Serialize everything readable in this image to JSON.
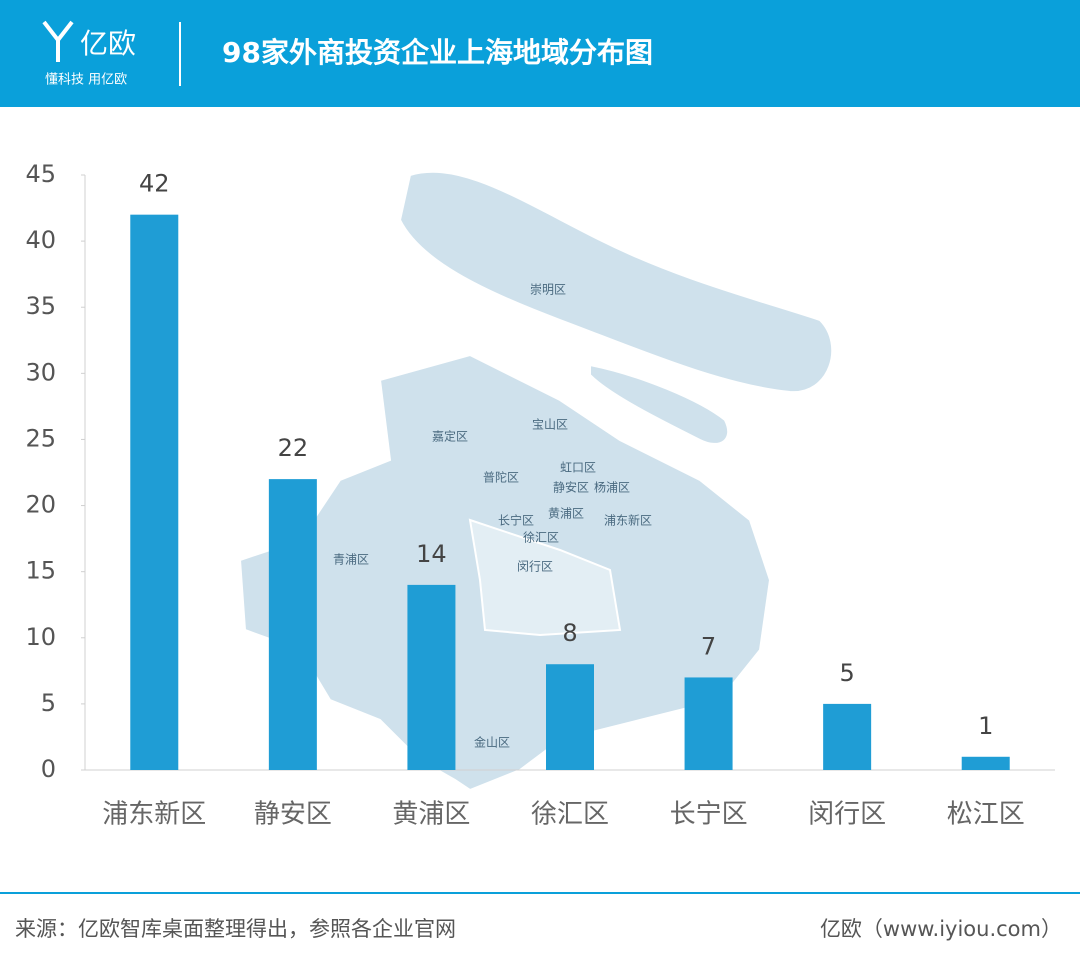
{
  "header": {
    "logo": "亿欧",
    "slogan": "懂科技 用亿欧",
    "title": "98家外商投资企业上海地域分布图"
  },
  "map": {
    "labels": [
      "崇明区",
      "嘉定区",
      "宝山区",
      "普陀区",
      "虹口区",
      "静安区",
      "杨浦区",
      "长宁区",
      "黄浦区",
      "浦东新区",
      "徐汇区",
      "青浦区",
      "闵行区",
      "金山区"
    ]
  },
  "chart_data": {
    "type": "bar",
    "categories": [
      "浦东新区",
      "静安区",
      "黄浦区",
      "徐汇区",
      "长宁区",
      "闵行区",
      "松江区"
    ],
    "values": [
      42,
      22,
      14,
      8,
      7,
      5,
      1
    ],
    "color": "#1f9dd5",
    "ylim": [
      0,
      45
    ],
    "yticks": [
      0,
      5,
      10,
      15,
      20,
      25,
      30,
      35,
      40,
      45
    ]
  },
  "footer": {
    "source": "来源：亿欧智库桌面整理得出，参照各企业官网",
    "site": "亿欧（www.iyiou.com）"
  }
}
